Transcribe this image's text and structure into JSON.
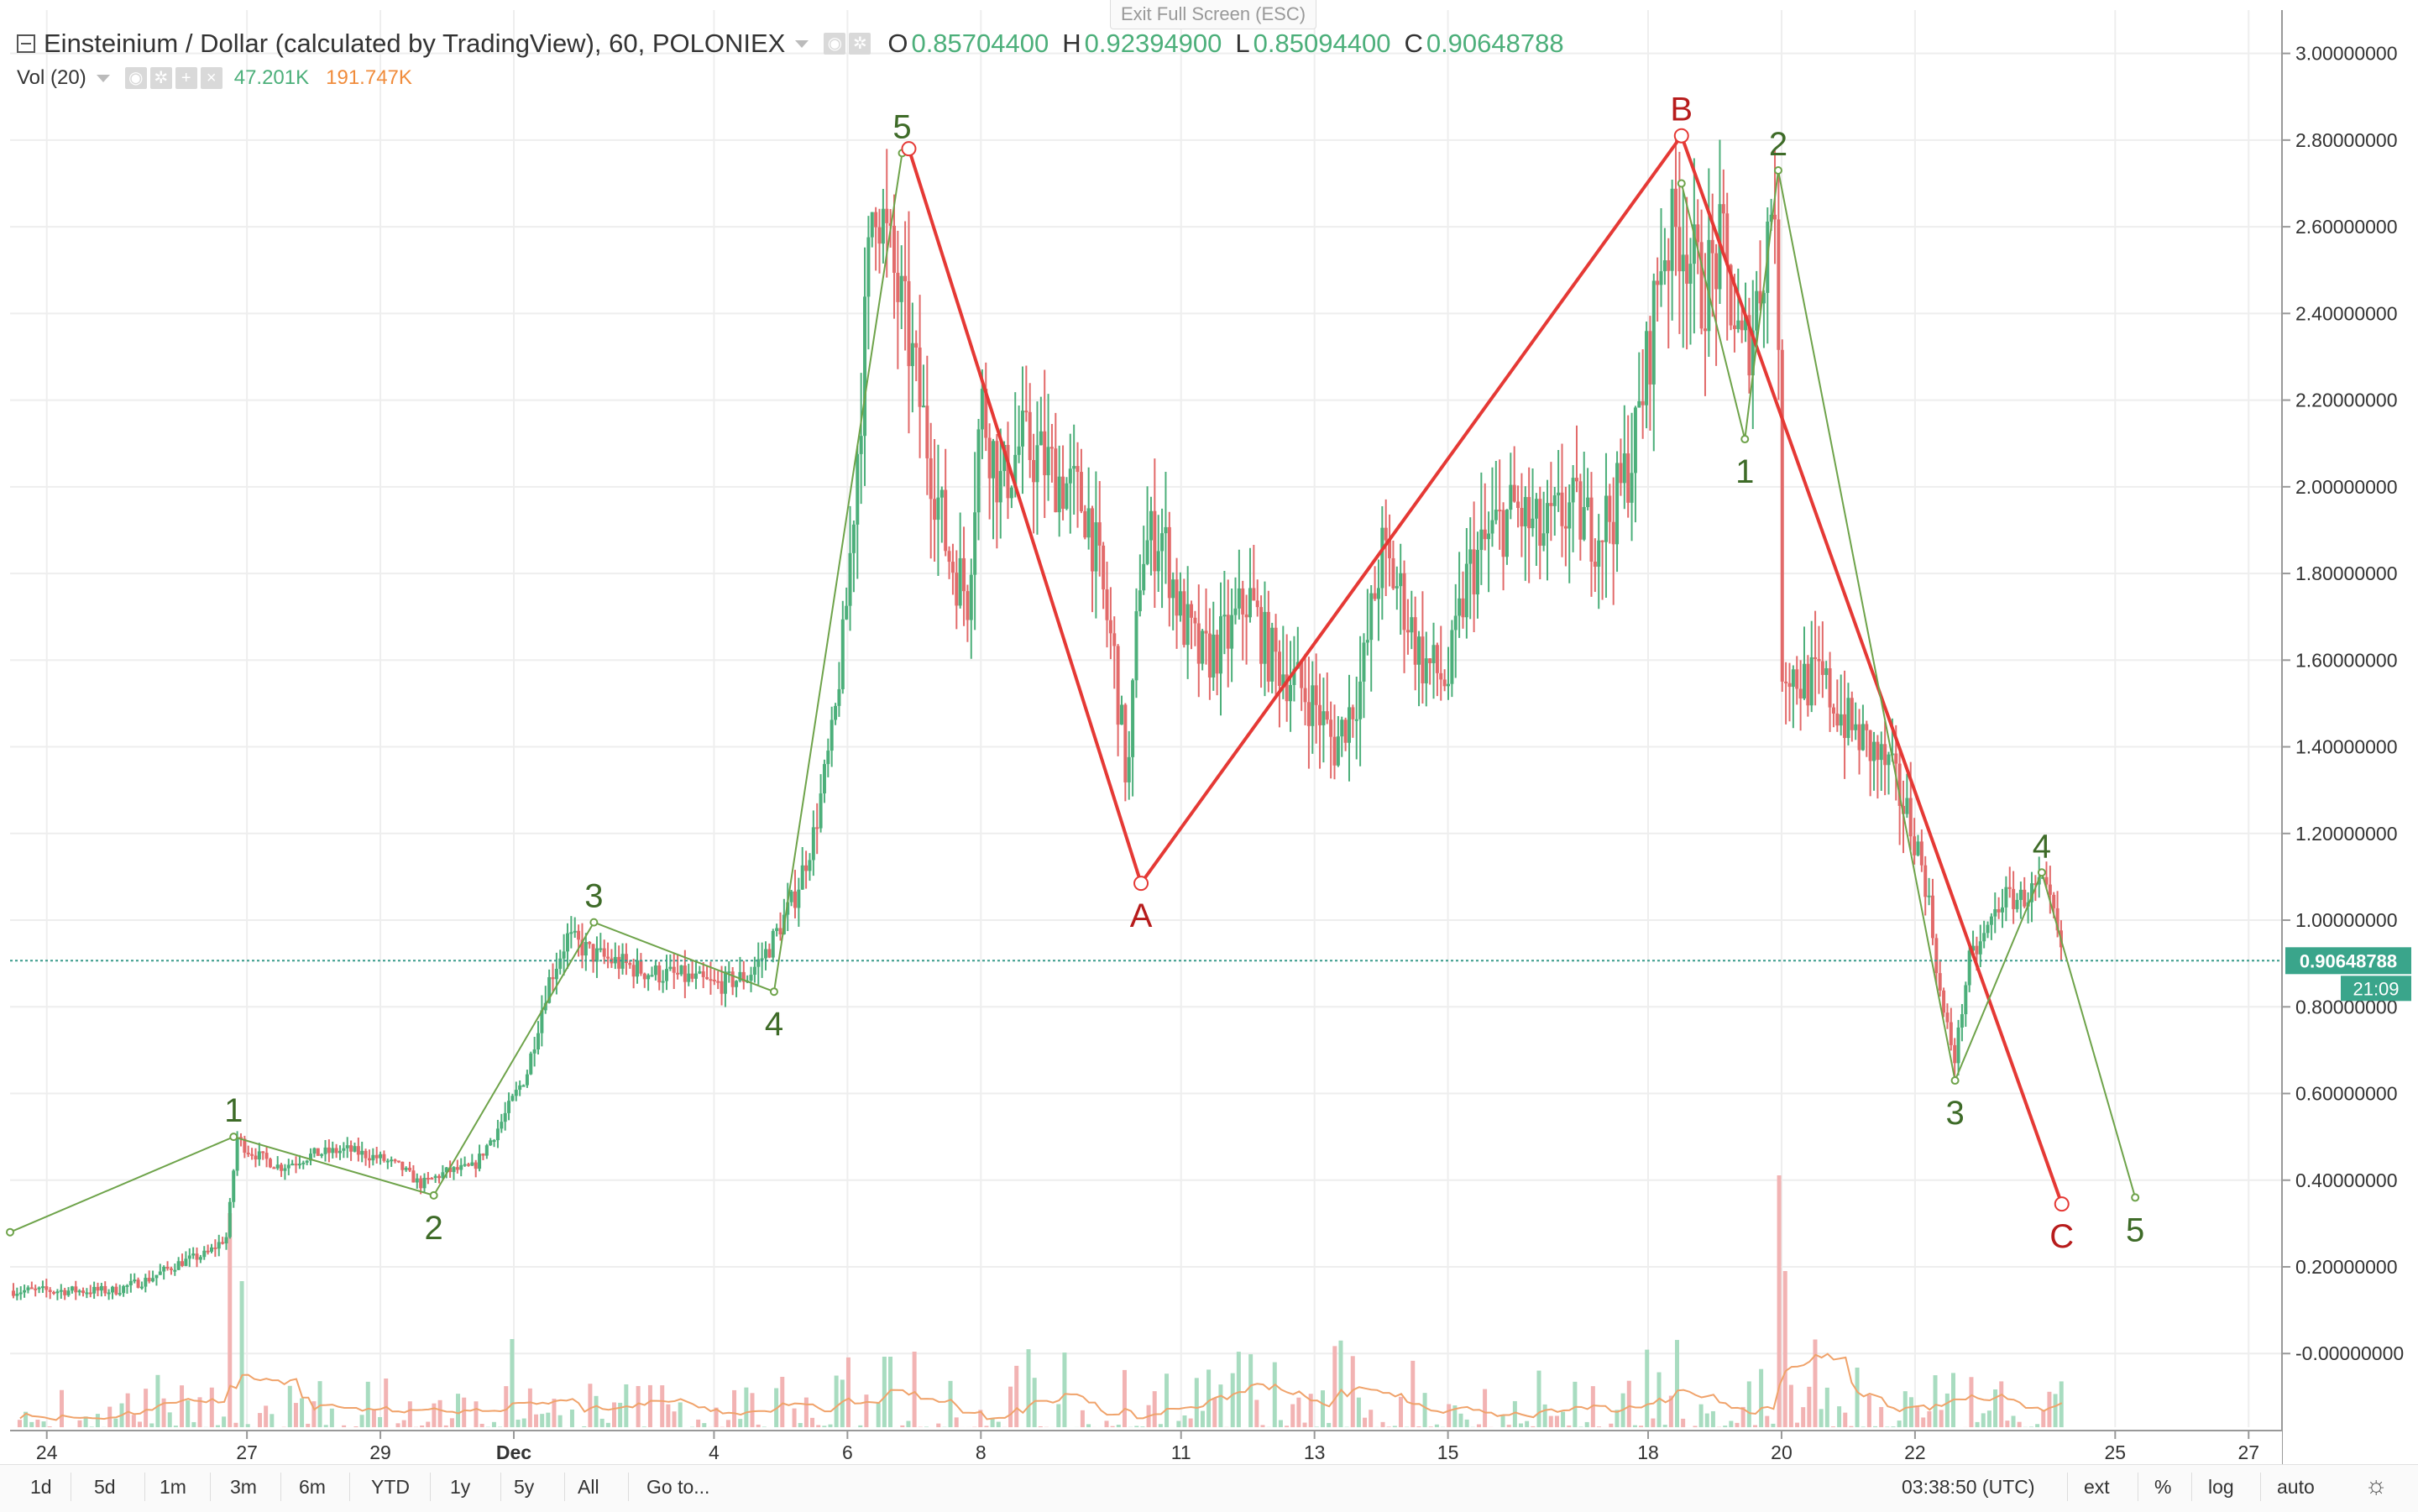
{
  "header": {
    "title": "Einsteinium / Dollar (calculated by TradingView), 60, POLONIEX",
    "ohlc": [
      {
        "key": "O",
        "value": "0.85704400"
      },
      {
        "key": "H",
        "value": "0.92394900"
      },
      {
        "key": "L",
        "value": "0.85094400"
      },
      {
        "key": "C",
        "value": "0.90648788"
      }
    ]
  },
  "volume": {
    "label": "Vol (20)",
    "value1": "47.201K",
    "value2": "191.747K"
  },
  "fullscreen_hint": "Exit Full Screen (ESC)",
  "price_badge": "0.90648788",
  "countdown_badge": "21:09",
  "timeframes": [
    "1d",
    "5d",
    "1m",
    "3m",
    "6m",
    "YTD",
    "1y",
    "5y",
    "All"
  ],
  "goto_label": "Go to...",
  "clock": "03:38:50 (UTC)",
  "controls": [
    "ext",
    "%",
    "log",
    "auto"
  ],
  "colors": {
    "up": "#4caf7a",
    "down": "#e26a6a",
    "wave_green": "#6ea34a",
    "wave_red": "#e53935",
    "grid": "#eeeeee",
    "label_green": "#3e6b28",
    "label_red": "#b71c1c"
  },
  "chart_data": {
    "type": "candlestick",
    "x_axis": {
      "unit": "day index (Nov 24 = 0)",
      "range": [
        -0.55,
        33.5
      ],
      "ticks": [
        {
          "x": 0,
          "label": "24"
        },
        {
          "x": 3,
          "label": "27"
        },
        {
          "x": 5,
          "label": "29"
        },
        {
          "x": 7,
          "label": "Dec"
        },
        {
          "x": 10,
          "label": "4"
        },
        {
          "x": 12,
          "label": "6"
        },
        {
          "x": 14,
          "label": "8"
        },
        {
          "x": 17,
          "label": "11"
        },
        {
          "x": 19,
          "label": "13"
        },
        {
          "x": 21,
          "label": "15"
        },
        {
          "x": 24,
          "label": "18"
        },
        {
          "x": 26,
          "label": "20"
        },
        {
          "x": 28,
          "label": "22"
        },
        {
          "x": 31,
          "label": "25"
        },
        {
          "x": 33,
          "label": "27"
        }
      ]
    },
    "y_axis": {
      "range": [
        -0.17,
        3.1
      ],
      "ticks": [
        3.0,
        2.8,
        2.6,
        2.4,
        2.2,
        2.0,
        1.8,
        1.6,
        1.4,
        1.2,
        1.0,
        0.8,
        0.6,
        0.4,
        0.2,
        0.0
      ],
      "tick_labels": [
        "3.00000000",
        "2.80000000",
        "2.60000000",
        "2.40000000",
        "2.20000000",
        "2.00000000",
        "1.80000000",
        "1.60000000",
        "1.40000000",
        "1.20000000",
        "1.00000000",
        "0.80000000",
        "0.60000000",
        "0.40000000",
        "0.20000000",
        "-0.00000000"
      ]
    },
    "last_price": 0.90648788,
    "price_path": [
      [
        -0.55,
        0.145
      ],
      [
        1.0,
        0.145
      ],
      [
        1.5,
        0.17
      ],
      [
        2.0,
        0.21
      ],
      [
        2.4,
        0.23
      ],
      [
        2.7,
        0.27
      ],
      [
        2.85,
        0.5
      ],
      [
        3.0,
        0.47
      ],
      [
        3.5,
        0.43
      ],
      [
        4.0,
        0.46
      ],
      [
        4.5,
        0.47
      ],
      [
        5.0,
        0.45
      ],
      [
        5.3,
        0.43
      ],
      [
        5.6,
        0.39
      ],
      [
        6.0,
        0.42
      ],
      [
        6.4,
        0.43
      ],
      [
        6.8,
        0.53
      ],
      [
        7.2,
        0.65
      ],
      [
        7.5,
        0.85
      ],
      [
        7.8,
        0.96
      ],
      [
        8.2,
        0.92
      ],
      [
        8.6,
        0.9
      ],
      [
        9.0,
        0.88
      ],
      [
        9.5,
        0.87
      ],
      [
        10.0,
        0.85
      ],
      [
        10.5,
        0.87
      ],
      [
        10.8,
        0.93
      ],
      [
        11.2,
        1.05
      ],
      [
        11.5,
        1.2
      ],
      [
        11.8,
        1.45
      ],
      [
        12.0,
        1.75
      ],
      [
        12.2,
        2.2
      ],
      [
        12.4,
        2.72
      ],
      [
        12.6,
        2.55
      ],
      [
        12.9,
        2.35
      ],
      [
        13.2,
        2.1
      ],
      [
        13.5,
        1.85
      ],
      [
        13.8,
        1.75
      ],
      [
        14.0,
        2.2
      ],
      [
        14.3,
        2.0
      ],
      [
        14.6,
        2.1
      ],
      [
        15.0,
        2.05
      ],
      [
        15.3,
        2.0
      ],
      [
        15.6,
        1.95
      ],
      [
        16.0,
        1.6
      ],
      [
        16.2,
        1.3
      ],
      [
        16.4,
        1.85
      ],
      [
        16.7,
        1.9
      ],
      [
        17.0,
        1.7
      ],
      [
        17.3,
        1.6
      ],
      [
        17.7,
        1.65
      ],
      [
        18.0,
        1.75
      ],
      [
        18.3,
        1.62
      ],
      [
        18.7,
        1.55
      ],
      [
        19.0,
        1.5
      ],
      [
        19.3,
        1.4
      ],
      [
        19.7,
        1.55
      ],
      [
        20.0,
        1.85
      ],
      [
        20.3,
        1.75
      ],
      [
        20.6,
        1.6
      ],
      [
        21.0,
        1.55
      ],
      [
        21.3,
        1.8
      ],
      [
        21.7,
        1.9
      ],
      [
        22.0,
        1.95
      ],
      [
        22.4,
        1.88
      ],
      [
        22.8,
        1.95
      ],
      [
        23.2,
        1.9
      ],
      [
        23.5,
        1.95
      ],
      [
        23.8,
        2.1
      ],
      [
        24.0,
        2.3
      ],
      [
        24.2,
        2.55
      ],
      [
        24.5,
        2.6
      ],
      [
        24.8,
        2.45
      ],
      [
        25.1,
        2.55
      ],
      [
        25.4,
        2.3
      ],
      [
        25.6,
        2.4
      ],
      [
        25.8,
        2.6
      ],
      [
        25.92,
        2.72
      ],
      [
        26.0,
        1.6
      ],
      [
        26.3,
        1.55
      ],
      [
        26.6,
        1.55
      ],
      [
        27.0,
        1.45
      ],
      [
        27.3,
        1.4
      ],
      [
        27.6,
        1.35
      ],
      [
        28.0,
        1.2
      ],
      [
        28.2,
        1.05
      ],
      [
        28.4,
        0.8
      ],
      [
        28.6,
        0.68
      ],
      [
        28.8,
        0.9
      ],
      [
        29.0,
        0.95
      ],
      [
        29.3,
        1.05
      ],
      [
        29.6,
        1.05
      ],
      [
        29.9,
        1.08
      ],
      [
        30.1,
        1.0
      ],
      [
        30.2,
        0.906
      ]
    ],
    "volume_spikes": [
      [
        2.75,
        0.85
      ],
      [
        2.9,
        0.58
      ],
      [
        7.0,
        0.35
      ],
      [
        13.0,
        0.3
      ],
      [
        26.0,
        1.0
      ],
      [
        26.05,
        0.62
      ],
      [
        12.6,
        0.28
      ],
      [
        11.0,
        0.2
      ]
    ],
    "waves": [
      {
        "color": "green",
        "points": [
          [
            -0.55,
            0.28
          ],
          [
            2.8,
            0.5
          ],
          [
            5.8,
            0.365
          ],
          [
            8.2,
            0.995
          ],
          [
            10.9,
            0.835
          ],
          [
            12.82,
            2.77
          ]
        ],
        "labels": [
          {
            "x": 2.8,
            "y": 0.5,
            "text": "1",
            "pos": "above"
          },
          {
            "x": 5.8,
            "y": 0.365,
            "text": "2",
            "pos": "below"
          },
          {
            "x": 8.2,
            "y": 0.995,
            "text": "3",
            "pos": "above"
          },
          {
            "x": 10.9,
            "y": 0.835,
            "text": "4",
            "pos": "below"
          },
          {
            "x": 12.82,
            "y": 2.77,
            "text": "5",
            "pos": "above"
          }
        ]
      },
      {
        "color": "red",
        "points": [
          [
            12.92,
            2.78
          ],
          [
            16.4,
            1.085
          ],
          [
            24.5,
            2.81
          ],
          [
            30.2,
            0.345
          ]
        ],
        "labels": [
          {
            "x": 16.4,
            "y": 1.085,
            "text": "A",
            "pos": "below"
          },
          {
            "x": 24.5,
            "y": 2.81,
            "text": "B",
            "pos": "above"
          },
          {
            "x": 30.2,
            "y": 0.345,
            "text": "C",
            "pos": "below"
          }
        ]
      },
      {
        "color": "green",
        "points": [
          [
            24.5,
            2.7
          ],
          [
            25.45,
            2.11
          ],
          [
            25.95,
            2.73
          ],
          [
            28.6,
            0.63
          ],
          [
            29.9,
            1.11
          ],
          [
            31.3,
            0.36
          ]
        ],
        "labels": [
          {
            "x": 25.45,
            "y": 2.11,
            "text": "1",
            "pos": "below"
          },
          {
            "x": 25.95,
            "y": 2.73,
            "text": "2",
            "pos": "above"
          },
          {
            "x": 28.6,
            "y": 0.63,
            "text": "3",
            "pos": "below"
          },
          {
            "x": 29.9,
            "y": 1.11,
            "text": "4",
            "pos": "above"
          },
          {
            "x": 31.3,
            "y": 0.36,
            "text": "5",
            "pos": "below"
          }
        ]
      }
    ]
  }
}
